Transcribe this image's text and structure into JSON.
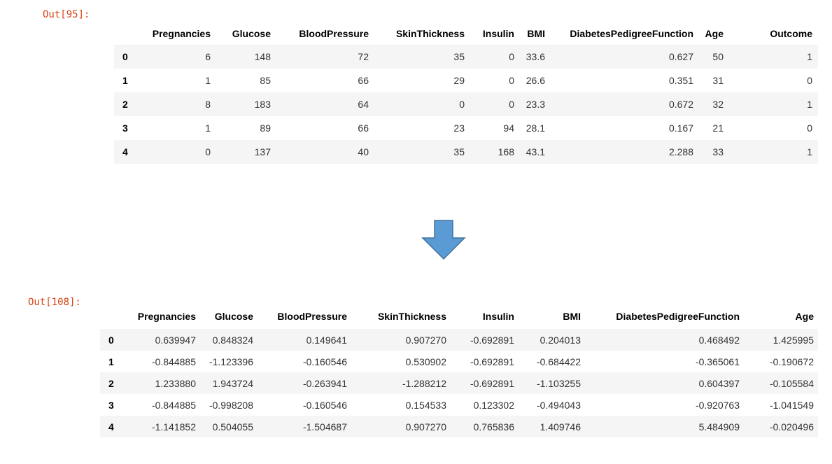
{
  "out1": {
    "prompt": "Out[95]:",
    "columns": [
      "Pregnancies",
      "Glucose",
      "BloodPressure",
      "SkinThickness",
      "Insulin",
      "BMI",
      "DiabetesPedigreeFunction",
      "Age",
      "Outcome"
    ],
    "rows": [
      {
        "index": "0",
        "values": [
          "6",
          "148",
          "72",
          "35",
          "0",
          "33.6",
          "0.627",
          "50",
          "1"
        ]
      },
      {
        "index": "1",
        "values": [
          "1",
          "85",
          "66",
          "29",
          "0",
          "26.6",
          "0.351",
          "31",
          "0"
        ]
      },
      {
        "index": "2",
        "values": [
          "8",
          "183",
          "64",
          "0",
          "0",
          "23.3",
          "0.672",
          "32",
          "1"
        ]
      },
      {
        "index": "3",
        "values": [
          "1",
          "89",
          "66",
          "23",
          "94",
          "28.1",
          "0.167",
          "21",
          "0"
        ]
      },
      {
        "index": "4",
        "values": [
          "0",
          "137",
          "40",
          "35",
          "168",
          "43.1",
          "2.288",
          "33",
          "1"
        ]
      }
    ]
  },
  "arrow": {
    "icon": "arrow-down-icon",
    "fill": "#5b9bd5",
    "stroke": "#41719c"
  },
  "out2": {
    "prompt": "Out[108]:",
    "columns": [
      "Pregnancies",
      "Glucose",
      "BloodPressure",
      "SkinThickness",
      "Insulin",
      "BMI",
      "DiabetesPedigreeFunction",
      "Age"
    ],
    "rows": [
      {
        "index": "0",
        "values": [
          "0.639947",
          "0.848324",
          "0.149641",
          "0.907270",
          "-0.692891",
          "0.204013",
          "0.468492",
          "1.425995"
        ]
      },
      {
        "index": "1",
        "values": [
          "-0.844885",
          "-1.123396",
          "-0.160546",
          "0.530902",
          "-0.692891",
          "-0.684422",
          "-0.365061",
          "-0.190672"
        ]
      },
      {
        "index": "2",
        "values": [
          "1.233880",
          "1.943724",
          "-0.263941",
          "-1.288212",
          "-0.692891",
          "-1.103255",
          "0.604397",
          "-0.105584"
        ]
      },
      {
        "index": "3",
        "values": [
          "-0.844885",
          "-0.998208",
          "-0.160546",
          "0.154533",
          "0.123302",
          "-0.494043",
          "-0.920763",
          "-1.041549"
        ]
      },
      {
        "index": "4",
        "values": [
          "-1.141852",
          "0.504055",
          "-1.504687",
          "0.907270",
          "0.765836",
          "1.409746",
          "5.484909",
          "-0.020496"
        ]
      }
    ]
  },
  "colors": {
    "prompt": "#d84315",
    "stripe": "#f5f5f5"
  }
}
